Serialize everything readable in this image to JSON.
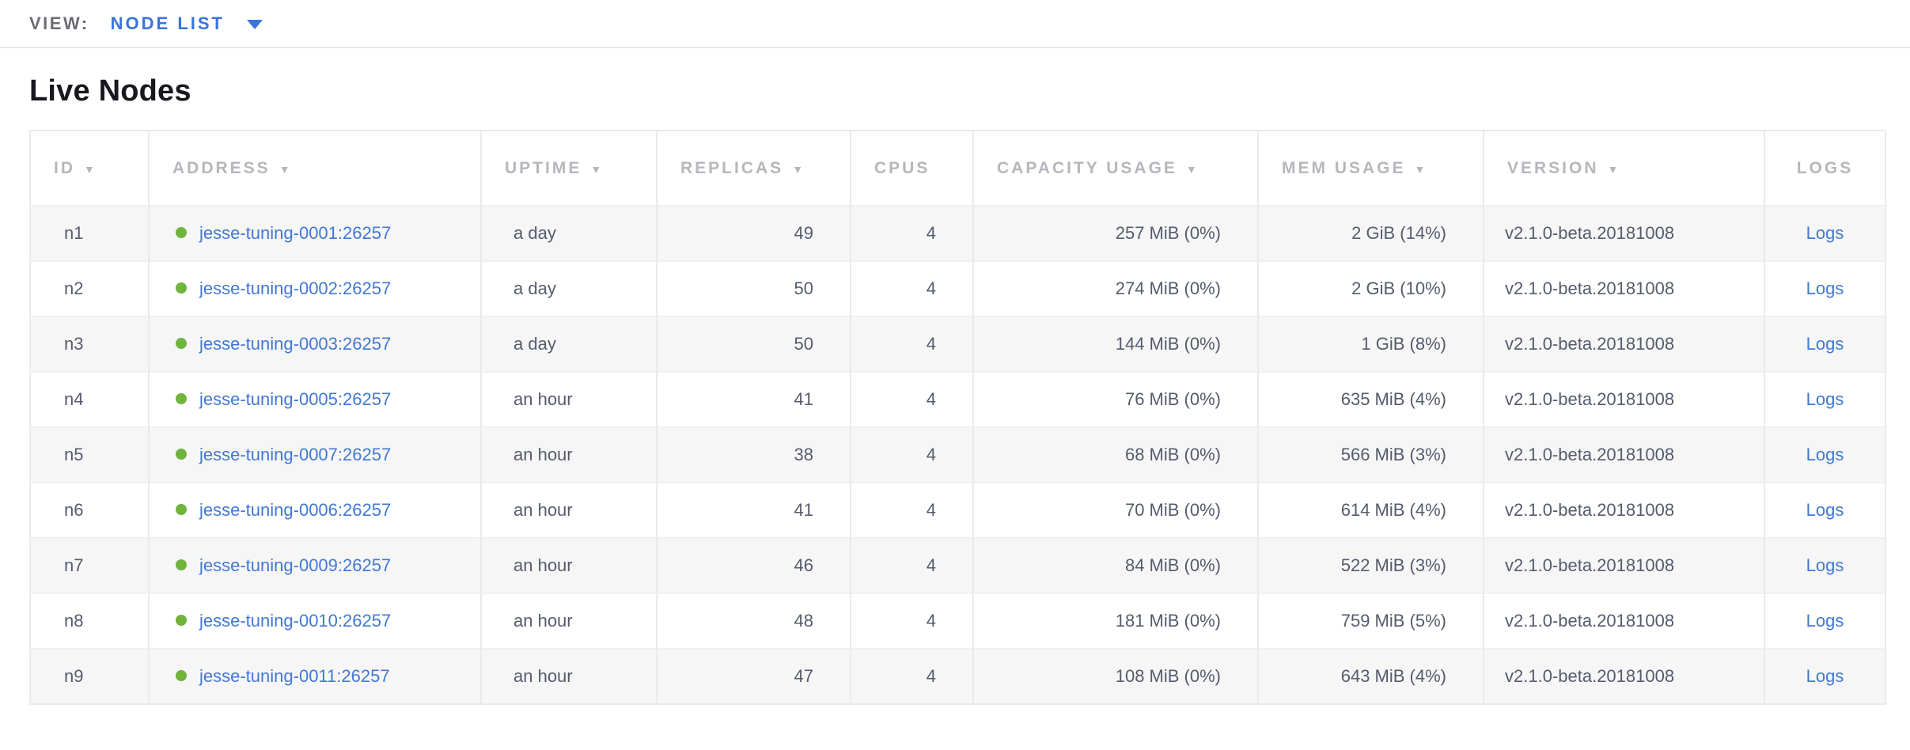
{
  "toolbar": {
    "view_label": "VIEW:",
    "view_value": "NODE LIST"
  },
  "page": {
    "title": "Live Nodes"
  },
  "icons": {
    "sort_desc": "▼",
    "dropdown_caret": "chevron-down",
    "node_status": "status-dot-green"
  },
  "colors": {
    "accent_blue": "#3b74d8",
    "link_blue": "#4178d4",
    "status_green": "#70b33d",
    "header_gray": "#b5b7bc",
    "cell_text": "#565b6c"
  },
  "table": {
    "columns": [
      {
        "label": "ID",
        "sortable": true
      },
      {
        "label": "ADDRESS",
        "sortable": true
      },
      {
        "label": "UPTIME",
        "sortable": true
      },
      {
        "label": "REPLICAS",
        "sortable": true
      },
      {
        "label": "CPUS",
        "sortable": false
      },
      {
        "label": "CAPACITY USAGE",
        "sortable": true
      },
      {
        "label": "MEM USAGE",
        "sortable": true
      },
      {
        "label": "VERSION",
        "sortable": true
      },
      {
        "label": "LOGS",
        "sortable": false
      }
    ],
    "rows": [
      {
        "id": "n1",
        "address": "jesse-tuning-0001:26257",
        "uptime": "a day",
        "replicas": "49",
        "cpus": "4",
        "capacity_usage": "257 MiB (0%)",
        "mem_usage": "2 GiB (14%)",
        "version": "v2.1.0-beta.20181008",
        "logs": "Logs"
      },
      {
        "id": "n2",
        "address": "jesse-tuning-0002:26257",
        "uptime": "a day",
        "replicas": "50",
        "cpus": "4",
        "capacity_usage": "274 MiB (0%)",
        "mem_usage": "2 GiB (10%)",
        "version": "v2.1.0-beta.20181008",
        "logs": "Logs"
      },
      {
        "id": "n3",
        "address": "jesse-tuning-0003:26257",
        "uptime": "a day",
        "replicas": "50",
        "cpus": "4",
        "capacity_usage": "144 MiB (0%)",
        "mem_usage": "1 GiB (8%)",
        "version": "v2.1.0-beta.20181008",
        "logs": "Logs"
      },
      {
        "id": "n4",
        "address": "jesse-tuning-0005:26257",
        "uptime": "an hour",
        "replicas": "41",
        "cpus": "4",
        "capacity_usage": "76 MiB (0%)",
        "mem_usage": "635 MiB (4%)",
        "version": "v2.1.0-beta.20181008",
        "logs": "Logs"
      },
      {
        "id": "n5",
        "address": "jesse-tuning-0007:26257",
        "uptime": "an hour",
        "replicas": "38",
        "cpus": "4",
        "capacity_usage": "68 MiB (0%)",
        "mem_usage": "566 MiB (3%)",
        "version": "v2.1.0-beta.20181008",
        "logs": "Logs"
      },
      {
        "id": "n6",
        "address": "jesse-tuning-0006:26257",
        "uptime": "an hour",
        "replicas": "41",
        "cpus": "4",
        "capacity_usage": "70 MiB (0%)",
        "mem_usage": "614 MiB (4%)",
        "version": "v2.1.0-beta.20181008",
        "logs": "Logs"
      },
      {
        "id": "n7",
        "address": "jesse-tuning-0009:26257",
        "uptime": "an hour",
        "replicas": "46",
        "cpus": "4",
        "capacity_usage": "84 MiB (0%)",
        "mem_usage": "522 MiB (3%)",
        "version": "v2.1.0-beta.20181008",
        "logs": "Logs"
      },
      {
        "id": "n8",
        "address": "jesse-tuning-0010:26257",
        "uptime": "an hour",
        "replicas": "48",
        "cpus": "4",
        "capacity_usage": "181 MiB (0%)",
        "mem_usage": "759 MiB (5%)",
        "version": "v2.1.0-beta.20181008",
        "logs": "Logs"
      },
      {
        "id": "n9",
        "address": "jesse-tuning-0011:26257",
        "uptime": "an hour",
        "replicas": "47",
        "cpus": "4",
        "capacity_usage": "108 MiB (0%)",
        "mem_usage": "643 MiB (4%)",
        "version": "v2.1.0-beta.20181008",
        "logs": "Logs"
      }
    ]
  }
}
